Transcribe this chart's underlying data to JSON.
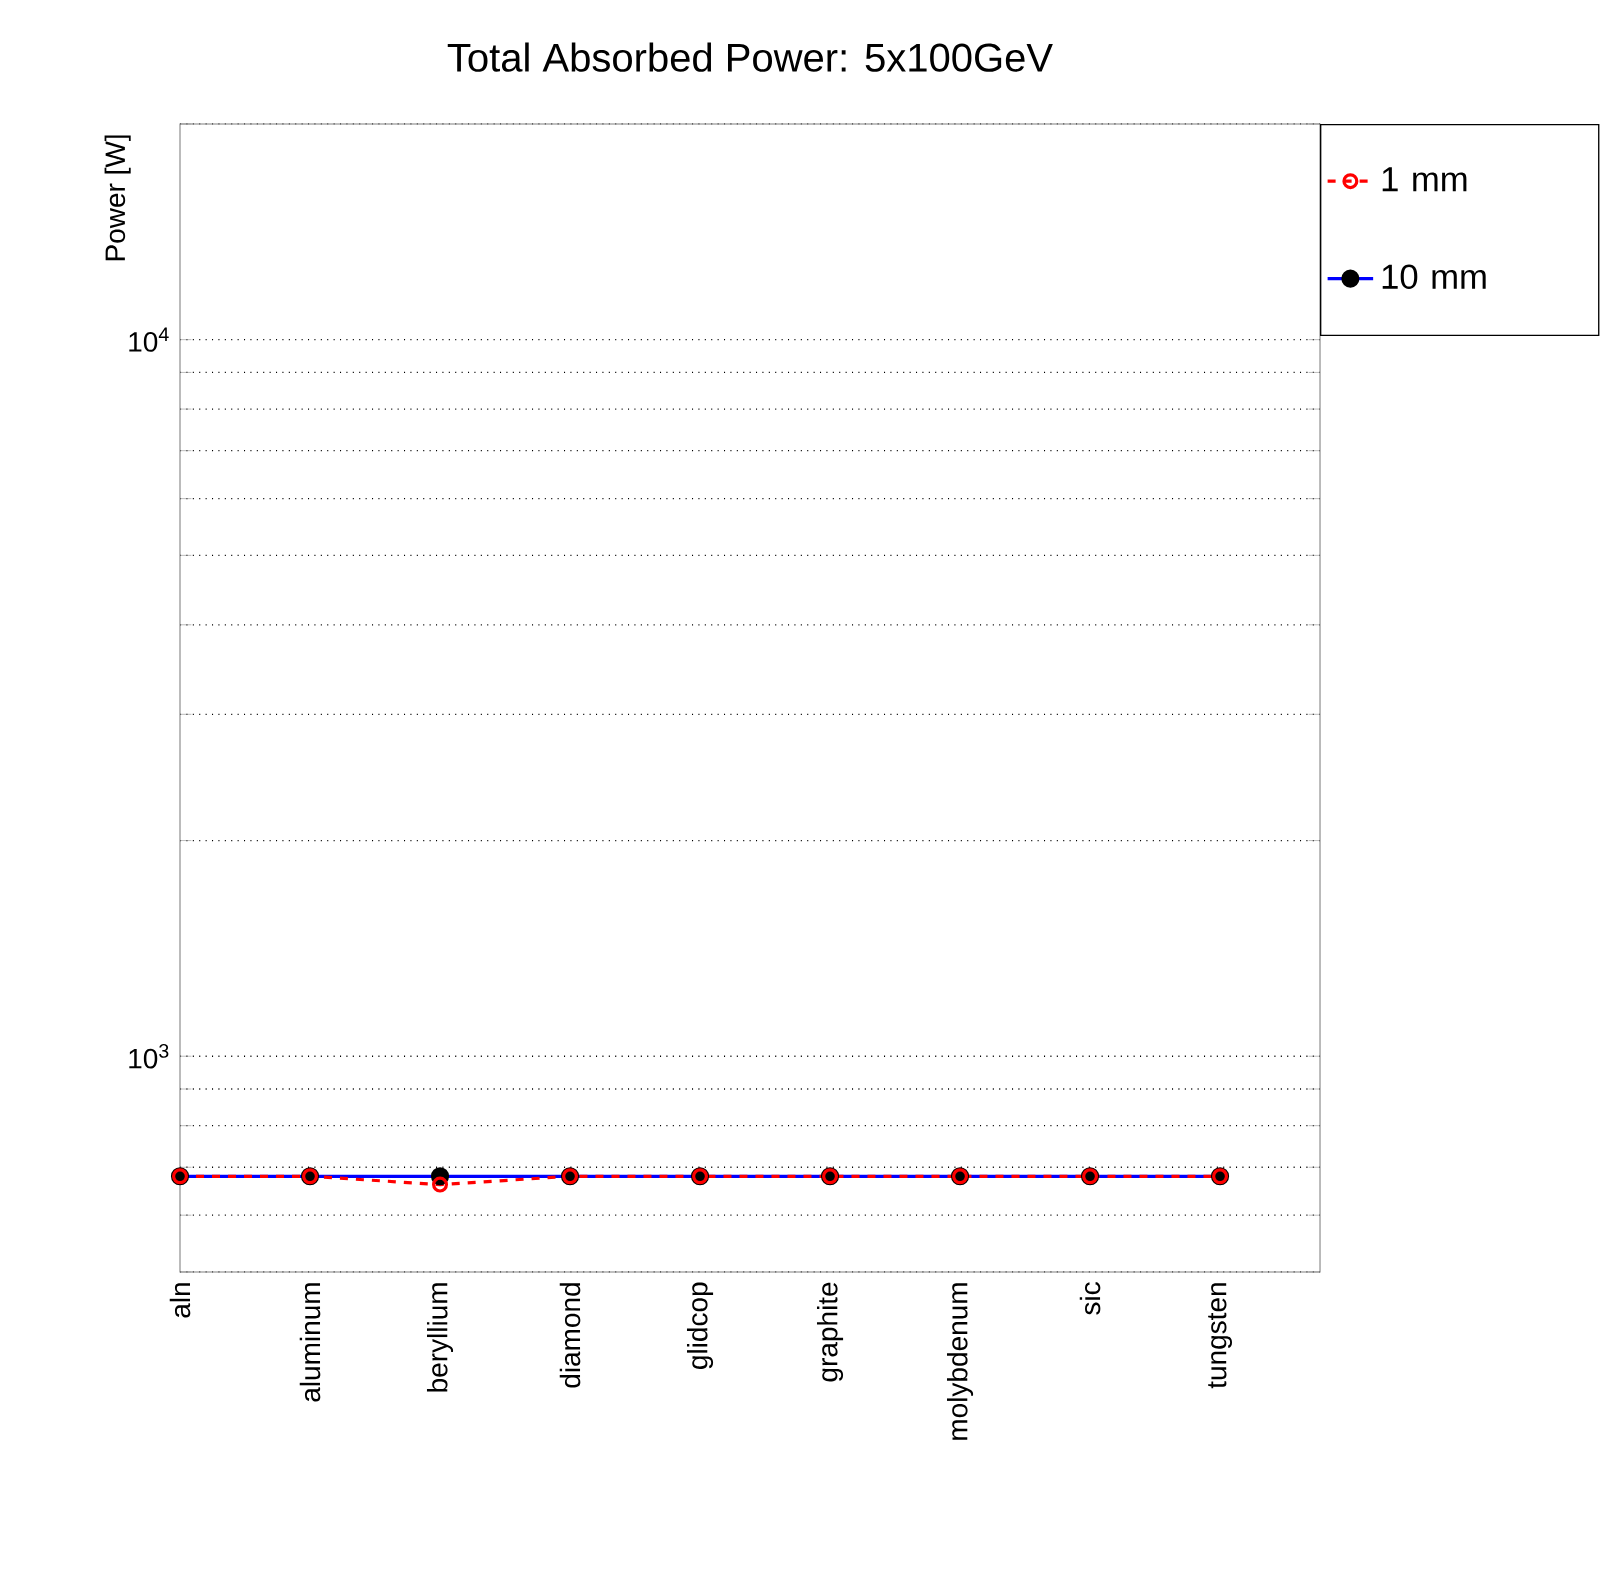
{
  "chart_data": {
    "type": "line",
    "title": "Total Absorbed Power: 5x100GeV",
    "ylabel": "Power [W]",
    "categories": [
      "aln",
      "aluminum",
      "beryllium",
      "diamond",
      "glidcop",
      "graphite",
      "molybdenum",
      "sic",
      "tungsten"
    ],
    "series": [
      {
        "name": "1 mm",
        "color": "#ff0000",
        "line_style": "dashed",
        "marker": "circle",
        "values": [
          680,
          680,
          662,
          680,
          680,
          680,
          680,
          680,
          680
        ]
      },
      {
        "name": "10 mm",
        "color": "#0000ff",
        "line_style": "solid",
        "marker": "circle",
        "values": [
          680,
          680,
          680,
          680,
          680,
          680,
          680,
          680,
          680
        ]
      }
    ],
    "log": "y",
    "ylim": [
      500,
      20000
    ],
    "yticks": [
      {
        "value": 500,
        "label": null
      },
      {
        "value": 600,
        "label": null
      },
      {
        "value": 700,
        "label": null
      },
      {
        "value": 800,
        "label": null
      },
      {
        "value": 900,
        "label": null
      },
      {
        "value": 1000,
        "label": "10$^{3}$"
      },
      {
        "value": 2000,
        "label": null
      },
      {
        "value": 3000,
        "label": null
      },
      {
        "value": 4000,
        "label": null
      },
      {
        "value": 5000,
        "label": null
      },
      {
        "value": 6000,
        "label": null
      },
      {
        "value": 7000,
        "label": null
      },
      {
        "value": 8000,
        "label": null
      },
      {
        "value": 9000,
        "label": null
      },
      {
        "value": 10000,
        "label": "10$^{4}$"
      },
      {
        "value": 20000,
        "label": null
      }
    ],
    "grid": "y",
    "legend": "right"
  }
}
